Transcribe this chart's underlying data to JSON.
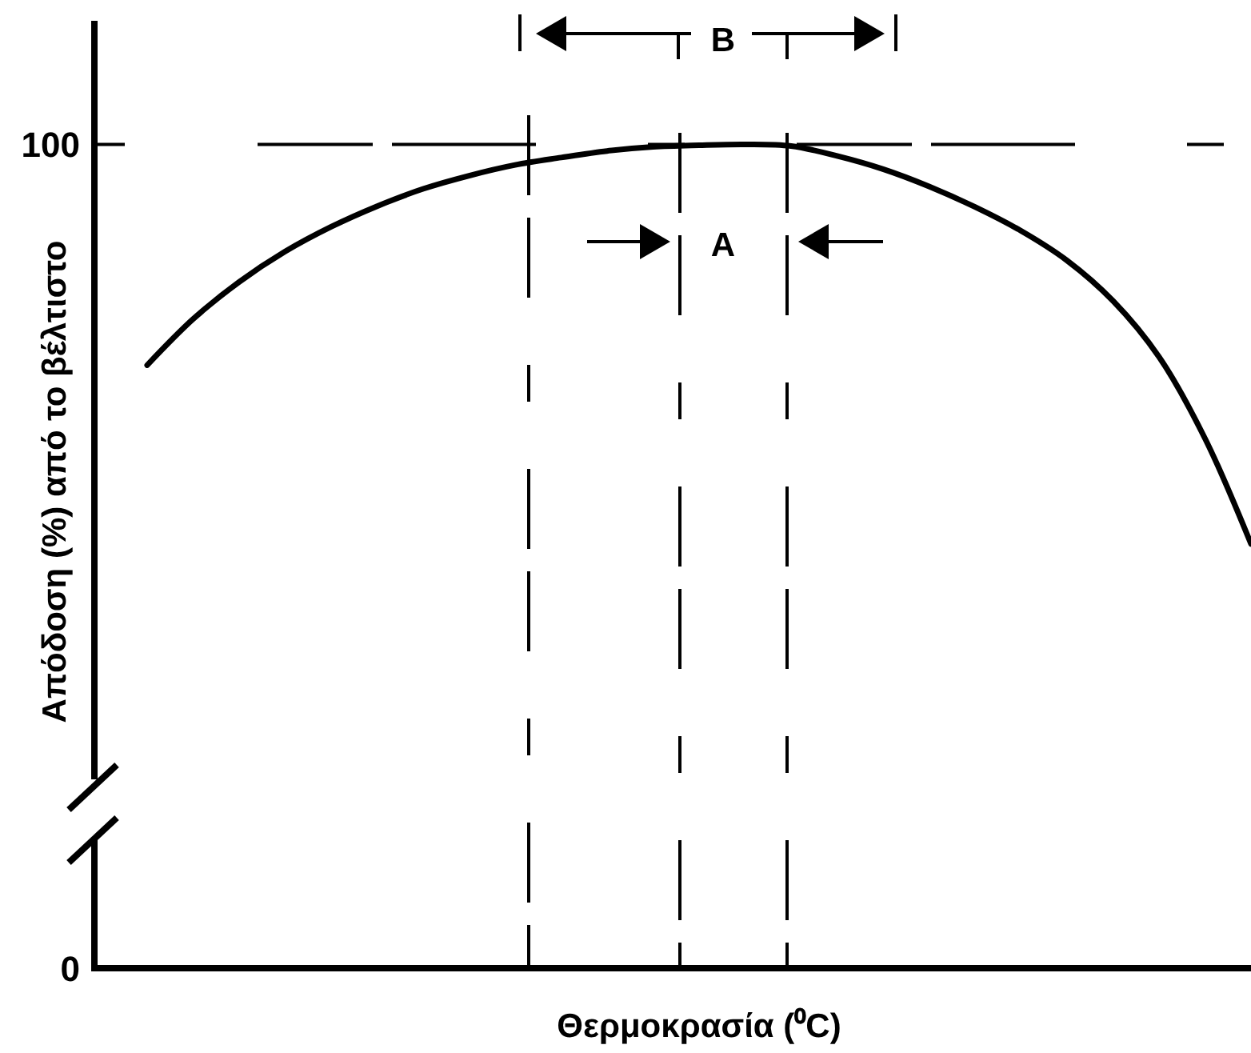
{
  "chart_data": {
    "type": "line",
    "xlabel": "Θερμοκρασία (⁰C)",
    "ylabel": "Απόδοση (%) από το βέλτιστο",
    "categories": [
      null,
      null,
      null,
      null,
      null,
      null,
      null,
      null,
      null,
      null,
      null,
      null,
      null,
      null,
      null,
      null,
      null,
      null,
      null,
      null,
      null,
      null,
      null,
      null,
      null
    ],
    "series": [
      {
        "color": "#000000",
        "values": [
          73.2,
          78.8,
          83.3,
          87.0,
          90.0,
          92.5,
          94.6,
          96.2,
          97.5,
          98.4,
          99.2,
          99.7,
          99.9,
          100,
          99.8,
          98.6,
          97.0,
          94.9,
          92.4,
          89.5,
          85.9,
          81.0,
          74.2,
          64.3,
          51.5
        ]
      }
    ],
    "ylim": [
      0,
      115
    ],
    "yticks": [
      0,
      100
    ],
    "tick_labels": "y",
    "ref_lines": [
      {
        "axis": "y",
        "value": 100,
        "color": "#000000",
        "line_style": "dashed"
      }
    ],
    "annotations": [
      "B",
      "A"
    ]
  }
}
